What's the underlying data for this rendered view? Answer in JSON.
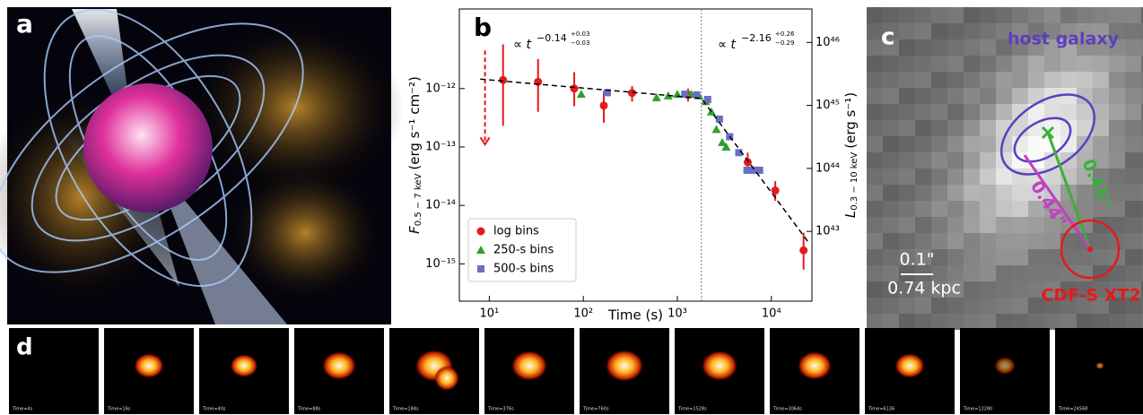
{
  "panels": {
    "a": {
      "letter": "a"
    },
    "b": {
      "letter": "b"
    },
    "c": {
      "letter": "c",
      "host": "host galaxy",
      "scale_angle": "0.1\"",
      "scale_length": "0.74 kpc",
      "source": "CDF-S XT2",
      "offset_green": "0.45\"",
      "offset_magenta": "0.44\""
    },
    "d": {
      "letter": "d",
      "frames": [
        "Time=4s",
        "Time=16s",
        "Time=40s",
        "Time=88s",
        "Time=184s",
        "Time=376s",
        "Time=760s",
        "Time=1528s",
        "Time=3064s",
        "Time=6136",
        "Time=12280",
        "Time=24568"
      ]
    }
  },
  "chart_data": {
    "type": "scatter",
    "log_x": true,
    "log_y": true,
    "xlabel": "Time (s)",
    "ylabel": {
      "symbol": "F",
      "sub": "0.5 − 7 keV",
      "unit": "(erg s⁻¹ cm⁻²)"
    },
    "y2label": {
      "symbol": "L",
      "sub": "0.3 − 10 keV",
      "unit": "(erg s⁻¹)"
    },
    "xlim": [
      4.8,
      27000
    ],
    "ylim": [
      2.3e-16,
      2.3e-11
    ],
    "y2lim": [
      7.8e+41,
      3.4e+46
    ],
    "xticks": [
      {
        "value": 10,
        "label": "10¹"
      },
      {
        "value": 100,
        "label": "10²"
      },
      {
        "value": 1000,
        "label": "10³"
      },
      {
        "value": 10000,
        "label": "10⁴"
      }
    ],
    "yticks": [
      {
        "value": 1e-15,
        "label": "10⁻¹⁵"
      },
      {
        "value": 1e-14,
        "label": "10⁻¹⁴"
      },
      {
        "value": 1e-13,
        "label": "10⁻¹³"
      },
      {
        "value": 1e-12,
        "label": "10⁻¹²"
      }
    ],
    "y2ticks": [
      {
        "value": 1e+43,
        "label": "10⁴³"
      },
      {
        "value": 1e+44,
        "label": "10⁴⁴"
      },
      {
        "value": 1e+45,
        "label": "10⁴⁵"
      },
      {
        "value": 1e+46,
        "label": "10⁴⁶"
      }
    ],
    "legend": "lower left",
    "series": [
      {
        "name": "log bins",
        "color": "#e41a1c",
        "marker": "circle",
        "x": [
          14,
          33,
          80,
          165,
          330,
          1300,
          5600,
          11000,
          22000
        ],
        "values": [
          1.4e-12,
          1.3e-12,
          1e-12,
          5.1e-13,
          8.4e-13,
          7.8e-13,
          5.5e-14,
          1.8e-14,
          1.7e-15
        ],
        "lower": [
          2.3e-13,
          4e-13,
          5e-13,
          2.6e-13,
          6e-13,
          6e-13,
          3.5e-14,
          1.2e-14,
          8e-16
        ],
        "upper": [
          5.7e-12,
          3.2e-12,
          1.9e-12,
          9e-13,
          1.1e-12,
          1e-12,
          8e-14,
          2.6e-14,
          3.4e-15
        ]
      },
      {
        "name": "250-s bins",
        "color": "#2ca02c",
        "marker": "triangle",
        "x": [
          95,
          600,
          800,
          1000,
          1400,
          1700,
          2000,
          2300,
          2600,
          3000,
          3300
        ],
        "values": [
          8e-13,
          7e-13,
          7.5e-13,
          8e-13,
          8e-13,
          7.5e-13,
          6e-13,
          4e-13,
          2e-13,
          1.2e-13,
          1e-13
        ]
      },
      {
        "name": "500-s bins",
        "color": "#6a6fc4",
        "marker": "square",
        "x": [
          180,
          1200,
          1600,
          2100,
          2800,
          3600,
          4500,
          5500,
          6500,
          7500
        ],
        "values": [
          8.5e-13,
          8e-13,
          7.8e-13,
          6.5e-13,
          3e-13,
          1.5e-13,
          8e-14,
          4e-14,
          4e-14,
          4e-14
        ]
      }
    ],
    "fit": {
      "x": [
        8,
        1800,
        25000
      ],
      "values": [
        1.45e-12,
        6.8e-13,
        2.3e-15
      ]
    },
    "break_time": 1800,
    "upper_limit": {
      "x": 9,
      "values": [
        4.5e-12,
        1.1e-13
      ]
    },
    "annotations": [
      {
        "prefix": "∝ t",
        "exponent": "−0.14",
        "upper": "+0.03",
        "lower": "−0.03"
      },
      {
        "prefix": "∝ t",
        "exponent": "−2.16",
        "upper": "+0.26",
        "lower": "−0.29"
      }
    ]
  }
}
